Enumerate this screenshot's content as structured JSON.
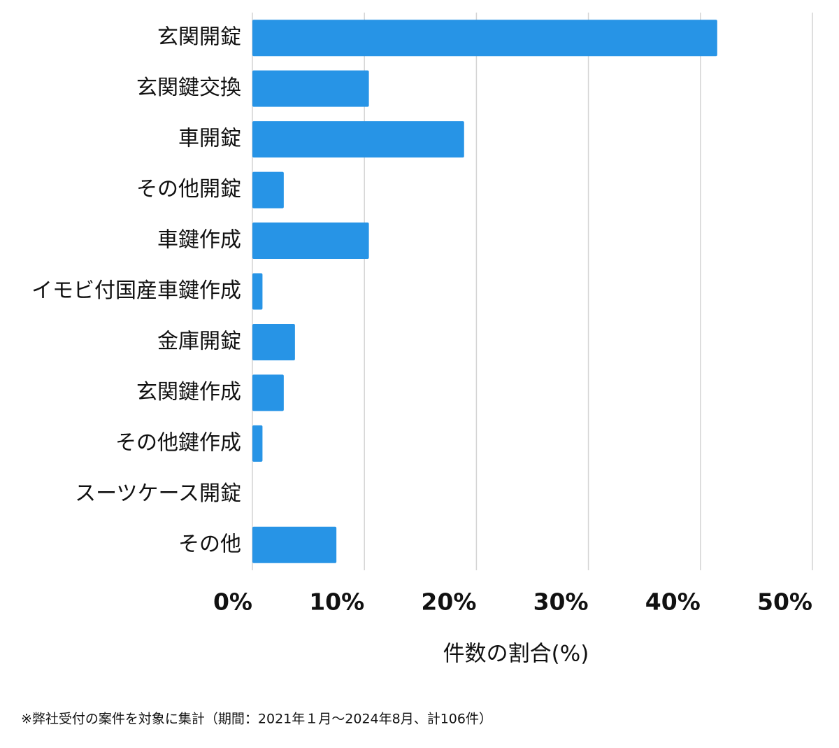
{
  "chart_data": {
    "type": "bar",
    "orientation": "horizontal",
    "categories": [
      "玄関開錠",
      "玄関鍵交換",
      "車開錠",
      "その他開錠",
      "車鍵作成",
      "イモビ付国産車鍵作成",
      "金庫開錠",
      "玄関鍵作成",
      "その他鍵作成",
      "スーツケース開錠",
      "その他"
    ],
    "values": [
      41.5,
      10.4,
      18.9,
      2.8,
      10.4,
      0.9,
      3.8,
      2.8,
      0.9,
      0,
      7.5
    ],
    "color": "#2794e6",
    "xlim": [
      0,
      50
    ],
    "xticks": [
      {
        "value": 0,
        "label": "0%"
      },
      {
        "value": 10,
        "label": "10%"
      },
      {
        "value": 20,
        "label": "20%"
      },
      {
        "value": 30,
        "label": "30%"
      },
      {
        "value": 40,
        "label": "40%"
      },
      {
        "value": 50,
        "label": "50%"
      }
    ],
    "xlabel": "件数の割合(%)",
    "grid": true,
    "footnote": "※弊社受付の案件を対象に集計（期間：2021年１月〜2024年8月、計106件）"
  }
}
